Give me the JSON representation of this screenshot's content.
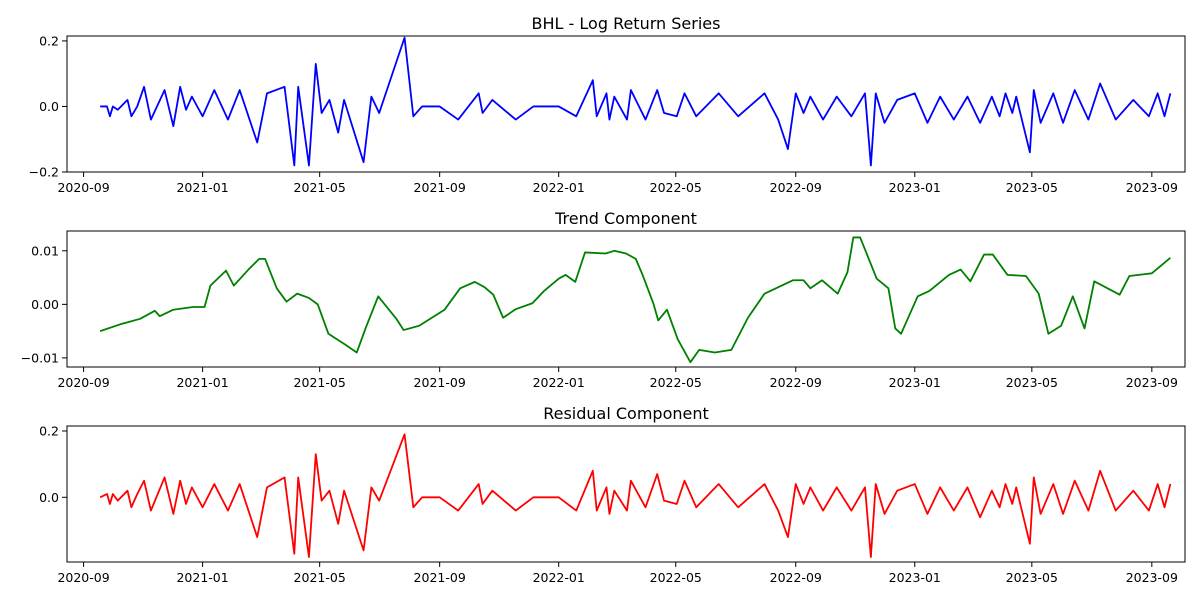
{
  "chart_data": [
    {
      "type": "line",
      "title": "BHL - Log Return Series",
      "xlabel": "",
      "ylabel": "",
      "color": "#0000ff",
      "xlim": [
        "2020-08-15",
        "2023-10-05"
      ],
      "ylim": [
        -0.2,
        0.215
      ],
      "y_ticks": [
        -0.2,
        0.0,
        0.2
      ],
      "y_tick_labels": [
        "−0.2",
        "0.0",
        "0.2"
      ],
      "x_ticks": [
        "2020-09-01",
        "2021-01-01",
        "2021-05-01",
        "2021-09-01",
        "2022-01-01",
        "2022-05-01",
        "2022-09-01",
        "2023-01-01",
        "2023-05-01",
        "2023-09-01"
      ],
      "x_tick_labels": [
        "2020-09",
        "2021-01",
        "2021-05",
        "2021-09",
        "2022-01",
        "2022-05",
        "2022-09",
        "2023-01",
        "2023-05",
        "2023-09"
      ],
      "grid": false,
      "series": [
        {
          "x": [
            "2020-09-18",
            "2020-09-25",
            "2020-09-28",
            "2020-10-01",
            "2020-10-06",
            "2020-10-16",
            "2020-10-20",
            "2020-10-26",
            "2020-11-02",
            "2020-11-09",
            "2020-11-23",
            "2020-12-02",
            "2020-12-09",
            "2020-12-15",
            "2020-12-21",
            "2021-01-01",
            "2021-01-13",
            "2021-01-27",
            "2021-02-08",
            "2021-02-26",
            "2021-03-08",
            "2021-03-26",
            "2021-04-05",
            "2021-04-09",
            "2021-04-20",
            "2021-04-27",
            "2021-05-03",
            "2021-05-11",
            "2021-05-20",
            "2021-05-26",
            "2021-06-15",
            "2021-06-23",
            "2021-07-01",
            "2021-07-27",
            "2021-08-05",
            "2021-08-14",
            "2021-09-01",
            "2021-09-20",
            "2021-10-11",
            "2021-10-15",
            "2021-10-25",
            "2021-11-18",
            "2021-12-06",
            "2022-01-01",
            "2022-01-19",
            "2022-02-05",
            "2022-02-09",
            "2022-02-19",
            "2022-02-22",
            "2022-02-27",
            "2022-03-12",
            "2022-03-16",
            "2022-03-31",
            "2022-04-12",
            "2022-04-19",
            "2022-05-02",
            "2022-05-10",
            "2022-05-22",
            "2022-06-14",
            "2022-07-04",
            "2022-07-31",
            "2022-08-14",
            "2022-08-24",
            "2022-09-01",
            "2022-09-09",
            "2022-09-16",
            "2022-09-29",
            "2022-10-13",
            "2022-10-28",
            "2022-11-11",
            "2022-11-17",
            "2022-11-22",
            "2022-12-01",
            "2022-12-14",
            "2023-01-01",
            "2023-01-14",
            "2023-01-27",
            "2023-02-10",
            "2023-02-24",
            "2023-03-09",
            "2023-03-21",
            "2023-03-29",
            "2023-04-04",
            "2023-04-11",
            "2023-04-15",
            "2023-04-29",
            "2023-05-03",
            "2023-05-10",
            "2023-05-23",
            "2023-06-02",
            "2023-06-14",
            "2023-06-28",
            "2023-07-10",
            "2023-07-26",
            "2023-08-13",
            "2023-08-29",
            "2023-09-07",
            "2023-09-14",
            "2023-09-20"
          ],
          "values": [
            0.0,
            0.0,
            -0.03,
            0.0,
            -0.01,
            0.02,
            -0.03,
            0.0,
            0.06,
            -0.04,
            0.05,
            -0.06,
            0.06,
            -0.01,
            0.03,
            -0.03,
            0.05,
            -0.04,
            0.05,
            -0.11,
            0.04,
            0.06,
            -0.18,
            0.06,
            -0.18,
            0.13,
            -0.02,
            0.02,
            -0.08,
            0.02,
            -0.17,
            0.03,
            -0.02,
            0.21,
            -0.03,
            0.0,
            0.0,
            -0.04,
            0.04,
            -0.02,
            0.02,
            -0.04,
            0.0,
            0.0,
            -0.03,
            0.08,
            -0.03,
            0.04,
            -0.04,
            0.03,
            -0.04,
            0.05,
            -0.04,
            0.05,
            -0.02,
            -0.03,
            0.04,
            -0.03,
            0.04,
            -0.03,
            0.04,
            -0.04,
            -0.13,
            0.04,
            -0.02,
            0.03,
            -0.04,
            0.03,
            -0.03,
            0.04,
            -0.18,
            0.04,
            -0.05,
            0.02,
            0.04,
            -0.05,
            0.03,
            -0.04,
            0.03,
            -0.05,
            0.03,
            -0.03,
            0.04,
            -0.02,
            0.03,
            -0.14,
            0.05,
            -0.05,
            0.04,
            -0.05,
            0.05,
            -0.04,
            0.07,
            -0.04,
            0.02,
            -0.03,
            0.04,
            -0.03,
            0.04
          ]
        }
      ]
    },
    {
      "type": "line",
      "title": "Trend Component",
      "xlabel": "",
      "ylabel": "",
      "color": "#008000",
      "xlim": [
        "2020-08-15",
        "2023-10-05"
      ],
      "ylim": [
        -0.0117,
        0.0137
      ],
      "y_ticks": [
        -0.01,
        0.0,
        0.01
      ],
      "y_tick_labels": [
        "−0.01",
        "0.00",
        "0.01"
      ],
      "x_ticks": [
        "2020-09-01",
        "2021-01-01",
        "2021-05-01",
        "2021-09-01",
        "2022-01-01",
        "2022-05-01",
        "2022-09-01",
        "2023-01-01",
        "2023-05-01",
        "2023-09-01"
      ],
      "x_tick_labels": [
        "2020-09",
        "2021-01",
        "2021-05",
        "2021-09",
        "2022-01",
        "2022-05",
        "2022-09",
        "2023-01",
        "2023-05",
        "2023-09"
      ],
      "grid": false,
      "series": [
        {
          "x": [
            "2020-09-18",
            "2020-10-09",
            "2020-10-29",
            "2020-11-13",
            "2020-11-18",
            "2020-12-02",
            "2020-12-22",
            "2021-01-03",
            "2021-01-09",
            "2021-01-25",
            "2021-02-02",
            "2021-02-17",
            "2021-02-28",
            "2021-03-06",
            "2021-03-18",
            "2021-03-28",
            "2021-04-08",
            "2021-04-20",
            "2021-04-29",
            "2021-05-10",
            "2021-05-27",
            "2021-06-08",
            "2021-06-17",
            "2021-06-30",
            "2021-07-19",
            "2021-07-26",
            "2021-08-11",
            "2021-09-06",
            "2021-09-22",
            "2021-10-07",
            "2021-10-17",
            "2021-10-26",
            "2021-11-05",
            "2021-11-18",
            "2021-12-05",
            "2021-12-17",
            "2022-01-01",
            "2022-01-08",
            "2022-01-18",
            "2022-01-28",
            "2022-02-18",
            "2022-02-27",
            "2022-03-11",
            "2022-03-21",
            "2022-03-28",
            "2022-04-08",
            "2022-04-13",
            "2022-04-22",
            "2022-05-03",
            "2022-05-16",
            "2022-05-25",
            "2022-06-10",
            "2022-06-27",
            "2022-07-14",
            "2022-07-31",
            "2022-08-29",
            "2022-09-09",
            "2022-09-16",
            "2022-09-28",
            "2022-10-14",
            "2022-10-24",
            "2022-10-30",
            "2022-11-06",
            "2022-11-23",
            "2022-12-05",
            "2022-12-12",
            "2022-12-18",
            "2023-01-04",
            "2023-01-16",
            "2023-02-05",
            "2023-02-17",
            "2023-02-27",
            "2023-03-13",
            "2023-03-22",
            "2023-04-06",
            "2023-04-25",
            "2023-05-08",
            "2023-05-18",
            "2023-05-31",
            "2023-06-12",
            "2023-06-24",
            "2023-07-04",
            "2023-07-30",
            "2023-08-09",
            "2023-09-01",
            "2023-09-20"
          ],
          "values": [
            -0.005,
            -0.0037,
            -0.0027,
            -0.0012,
            -0.0022,
            -0.001,
            -0.0005,
            -0.0005,
            0.0035,
            0.0063,
            0.0035,
            0.0065,
            0.0085,
            0.0085,
            0.003,
            0.0005,
            0.002,
            0.0012,
            0.0,
            -0.0055,
            -0.0075,
            -0.009,
            -0.0045,
            0.0015,
            -0.0028,
            -0.0048,
            -0.004,
            -0.001,
            0.003,
            0.0042,
            0.0032,
            0.0018,
            -0.0025,
            -0.0009,
            0.0002,
            0.0025,
            0.0048,
            0.0055,
            0.0042,
            0.0097,
            0.0095,
            0.01,
            0.0095,
            0.0085,
            0.0055,
            0.0002,
            -0.003,
            -0.001,
            -0.0065,
            -0.0108,
            -0.0085,
            -0.009,
            -0.0085,
            -0.0025,
            0.002,
            0.0045,
            0.0045,
            0.003,
            0.0045,
            0.002,
            0.006,
            0.0125,
            0.0125,
            0.0048,
            0.003,
            -0.0045,
            -0.0055,
            0.0015,
            0.0025,
            0.0055,
            0.0065,
            0.0043,
            0.0093,
            0.0093,
            0.0055,
            0.0053,
            0.002,
            -0.0055,
            -0.004,
            0.0015,
            -0.0045,
            0.0043,
            0.0018,
            0.0053,
            0.0058,
            0.0087
          ]
        }
      ]
    },
    {
      "type": "line",
      "title": "Residual Component",
      "xlabel": "",
      "ylabel": "",
      "color": "#ff0000",
      "xlim": [
        "2020-08-15",
        "2023-10-05"
      ],
      "ylim": [
        -0.195,
        0.215
      ],
      "y_ticks": [
        0.0,
        0.2
      ],
      "y_tick_labels": [
        "0.0",
        "0.2"
      ],
      "x_ticks": [
        "2020-09-01",
        "2021-01-01",
        "2021-05-01",
        "2021-09-01",
        "2022-01-01",
        "2022-05-01",
        "2022-09-01",
        "2023-01-01",
        "2023-05-01",
        "2023-09-01"
      ],
      "x_tick_labels": [
        "2020-09",
        "2021-01",
        "2021-05",
        "2021-09",
        "2022-01",
        "2022-05",
        "2022-09",
        "2023-01",
        "2023-05",
        "2023-09"
      ],
      "grid": false,
      "series": [
        {
          "x": [
            "2020-09-18",
            "2020-09-25",
            "2020-09-28",
            "2020-10-01",
            "2020-10-06",
            "2020-10-16",
            "2020-10-20",
            "2020-10-26",
            "2020-11-02",
            "2020-11-09",
            "2020-11-23",
            "2020-12-02",
            "2020-12-09",
            "2020-12-15",
            "2020-12-21",
            "2021-01-01",
            "2021-01-13",
            "2021-01-27",
            "2021-02-08",
            "2021-02-26",
            "2021-03-08",
            "2021-03-26",
            "2021-04-05",
            "2021-04-09",
            "2021-04-20",
            "2021-04-27",
            "2021-05-03",
            "2021-05-11",
            "2021-05-20",
            "2021-05-26",
            "2021-06-15",
            "2021-06-23",
            "2021-07-01",
            "2021-07-27",
            "2021-08-05",
            "2021-08-14",
            "2021-09-01",
            "2021-09-20",
            "2021-10-11",
            "2021-10-15",
            "2021-10-25",
            "2021-11-18",
            "2021-12-06",
            "2022-01-01",
            "2022-01-19",
            "2022-02-05",
            "2022-02-09",
            "2022-02-19",
            "2022-02-22",
            "2022-02-27",
            "2022-03-12",
            "2022-03-16",
            "2022-03-31",
            "2022-04-12",
            "2022-04-19",
            "2022-05-02",
            "2022-05-10",
            "2022-05-22",
            "2022-06-14",
            "2022-07-04",
            "2022-07-31",
            "2022-08-14",
            "2022-08-24",
            "2022-09-01",
            "2022-09-09",
            "2022-09-16",
            "2022-09-29",
            "2022-10-13",
            "2022-10-28",
            "2022-11-11",
            "2022-11-17",
            "2022-11-22",
            "2022-12-01",
            "2022-12-14",
            "2023-01-01",
            "2023-01-14",
            "2023-01-27",
            "2023-02-10",
            "2023-02-24",
            "2023-03-09",
            "2023-03-21",
            "2023-03-29",
            "2023-04-04",
            "2023-04-11",
            "2023-04-15",
            "2023-04-29",
            "2023-05-03",
            "2023-05-10",
            "2023-05-23",
            "2023-06-02",
            "2023-06-14",
            "2023-06-28",
            "2023-07-10",
            "2023-07-26",
            "2023-08-13",
            "2023-08-29",
            "2023-09-07",
            "2023-09-14",
            "2023-09-20"
          ],
          "values": [
            0.0,
            0.01,
            -0.02,
            0.01,
            -0.01,
            0.02,
            -0.03,
            0.01,
            0.05,
            -0.04,
            0.06,
            -0.05,
            0.05,
            -0.02,
            0.03,
            -0.03,
            0.04,
            -0.04,
            0.04,
            -0.12,
            0.03,
            0.06,
            -0.17,
            0.06,
            -0.18,
            0.13,
            -0.01,
            0.02,
            -0.08,
            0.02,
            -0.16,
            0.03,
            -0.01,
            0.19,
            -0.03,
            0.0,
            0.0,
            -0.04,
            0.04,
            -0.02,
            0.02,
            -0.04,
            0.0,
            0.0,
            -0.04,
            0.08,
            -0.04,
            0.03,
            -0.05,
            0.02,
            -0.04,
            0.05,
            -0.03,
            0.07,
            -0.01,
            -0.02,
            0.05,
            -0.03,
            0.04,
            -0.03,
            0.04,
            -0.04,
            -0.12,
            0.04,
            -0.02,
            0.03,
            -0.04,
            0.03,
            -0.04,
            0.03,
            -0.18,
            0.04,
            -0.05,
            0.02,
            0.04,
            -0.05,
            0.03,
            -0.04,
            0.03,
            -0.06,
            0.02,
            -0.03,
            0.04,
            -0.02,
            0.03,
            -0.14,
            0.06,
            -0.05,
            0.04,
            -0.05,
            0.05,
            -0.04,
            0.08,
            -0.04,
            0.02,
            -0.04,
            0.04,
            -0.03,
            0.04
          ]
        }
      ]
    }
  ]
}
